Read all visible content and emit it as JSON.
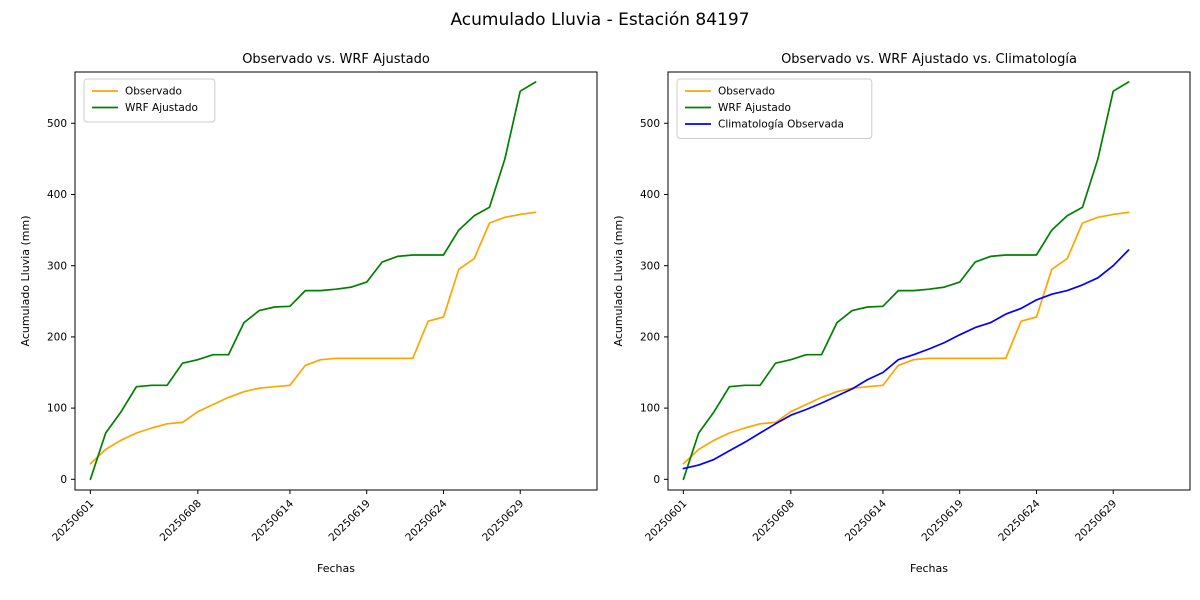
{
  "figure": {
    "suptitle": "Acumulado Lluvia - Estación 84197"
  },
  "chart_data": [
    {
      "type": "line",
      "title": "Observado vs. WRF Ajustado",
      "xlabel": "Fechas",
      "ylabel": "Acumulado Lluvia (mm)",
      "x": [
        "20250601",
        "20250602",
        "20250603",
        "20250604",
        "20250605",
        "20250606",
        "20250607",
        "20250608",
        "20250609",
        "20250610",
        "20250611",
        "20250612",
        "20250613",
        "20250614",
        "20250615",
        "20250616",
        "20250617",
        "20250618",
        "20250619",
        "20250620",
        "20250621",
        "20250622",
        "20250623",
        "20250624",
        "20250625",
        "20250626",
        "20250627",
        "20250628",
        "20250629",
        "20250630"
      ],
      "xtick_labels": [
        "20250601",
        "20250608",
        "20250614",
        "20250619",
        "20250624",
        "20250629"
      ],
      "yticks": [
        0,
        100,
        200,
        300,
        400,
        500
      ],
      "ylim": [
        -15,
        572
      ],
      "grid": false,
      "legend_position": "upper left",
      "series": [
        {
          "name": "Observado",
          "color": "#ffa500",
          "values": [
            22,
            42,
            55,
            65,
            72,
            78,
            80,
            95,
            105,
            115,
            123,
            128,
            130,
            132,
            160,
            168,
            170,
            170,
            170,
            170,
            170,
            170,
            222,
            228,
            295,
            310,
            360,
            368,
            372,
            375
          ]
        },
        {
          "name": "WRF Ajustado",
          "color": "#008000",
          "values": [
            0,
            65,
            95,
            130,
            132,
            132,
            163,
            168,
            175,
            175,
            220,
            237,
            242,
            243,
            265,
            265,
            267,
            270,
            277,
            305,
            313,
            315,
            315,
            315,
            350,
            370,
            382,
            450,
            545,
            558
          ]
        }
      ]
    },
    {
      "type": "line",
      "title": "Observado vs. WRF Ajustado vs. Climatología",
      "xlabel": "Fechas",
      "ylabel": "Acumulado Lluvia (mm)",
      "x": [
        "20250601",
        "20250602",
        "20250603",
        "20250604",
        "20250605",
        "20250606",
        "20250607",
        "20250608",
        "20250609",
        "20250610",
        "20250611",
        "20250612",
        "20250613",
        "20250614",
        "20250615",
        "20250616",
        "20250617",
        "20250618",
        "20250619",
        "20250620",
        "20250621",
        "20250622",
        "20250623",
        "20250624",
        "20250625",
        "20250626",
        "20250627",
        "20250628",
        "20250629",
        "20250630"
      ],
      "xtick_labels": [
        "20250601",
        "20250608",
        "20250614",
        "20250619",
        "20250624",
        "20250629"
      ],
      "yticks": [
        0,
        100,
        200,
        300,
        400,
        500
      ],
      "ylim": [
        -15,
        572
      ],
      "grid": false,
      "legend_position": "upper left",
      "series": [
        {
          "name": "Observado",
          "color": "#ffa500",
          "values": [
            22,
            42,
            55,
            65,
            72,
            78,
            80,
            95,
            105,
            115,
            123,
            128,
            130,
            132,
            160,
            168,
            170,
            170,
            170,
            170,
            170,
            170,
            222,
            228,
            295,
            310,
            360,
            368,
            372,
            375
          ]
        },
        {
          "name": "WRF Ajustado",
          "color": "#008000",
          "values": [
            0,
            65,
            95,
            130,
            132,
            132,
            163,
            168,
            175,
            175,
            220,
            237,
            242,
            243,
            265,
            265,
            267,
            270,
            277,
            305,
            313,
            315,
            315,
            315,
            350,
            370,
            382,
            450,
            545,
            558
          ]
        },
        {
          "name": "Climatología Observada",
          "color": "#0000ff",
          "values": [
            15,
            20,
            28,
            40,
            52,
            65,
            78,
            90,
            98,
            107,
            117,
            127,
            140,
            150,
            168,
            175,
            183,
            192,
            203,
            213,
            220,
            232,
            240,
            252,
            260,
            265,
            273,
            283,
            300,
            322
          ]
        }
      ]
    }
  ]
}
